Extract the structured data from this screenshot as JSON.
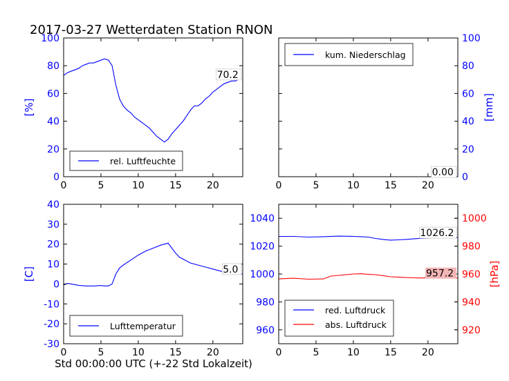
{
  "title": "2017-03-27 Wetterdaten Station RNON",
  "xlabel": "Std 00:00:00 UTC (+-22 Std Lokalzeit)",
  "colors": {
    "blue": "#0000ff",
    "red": "#ff0000",
    "black": "#000000"
  },
  "chart_data": [
    {
      "type": "line",
      "panel": "top-left",
      "xlim": [
        0,
        24
      ],
      "xticks": [
        0,
        5,
        10,
        15,
        20
      ],
      "ylim": [
        0,
        100
      ],
      "yticks": [
        0,
        20,
        40,
        60,
        80,
        100
      ],
      "ylabel": "[%]",
      "legend_position": "lower-left",
      "annotation": "70.2",
      "series": [
        {
          "name": "rel. Luftfeuchte",
          "color": "#0000ff",
          "x": [
            0,
            0.5,
            1,
            1.5,
            2,
            2.5,
            3,
            3.5,
            4,
            4.5,
            5,
            5.5,
            6,
            6.5,
            7,
            7.5,
            8,
            8.5,
            9,
            9.5,
            10,
            10.5,
            11,
            11.5,
            12,
            12.5,
            13,
            13.5,
            14,
            14.5,
            15,
            15.5,
            16,
            16.5,
            17,
            17.5,
            18,
            18.5,
            19,
            19.5,
            20,
            20.5,
            21,
            21.5,
            22,
            22.5,
            23,
            23.5
          ],
          "values": [
            73,
            75,
            76,
            77,
            78,
            80,
            81,
            82,
            82,
            83,
            84,
            85,
            84,
            80,
            66,
            56,
            51,
            48,
            46,
            43,
            41,
            39,
            37,
            35,
            32,
            29,
            27,
            25,
            27,
            31,
            34,
            37,
            40,
            44,
            48,
            51,
            51,
            53,
            56,
            58,
            61,
            63,
            65,
            67,
            68,
            69,
            69,
            70.2
          ]
        }
      ]
    },
    {
      "type": "line",
      "panel": "top-right",
      "xlim": [
        0,
        24
      ],
      "xticks": [
        0,
        5,
        10,
        15,
        20
      ],
      "ylim": [
        0,
        100
      ],
      "yticks": [
        0,
        20,
        40,
        60,
        80,
        100
      ],
      "ylabel": "[mm]",
      "legend_position": "upper-left",
      "annotation": "0.00",
      "series": [
        {
          "name": "kum. Niederschlag",
          "color": "#0000ff",
          "x": [
            0,
            24
          ],
          "values": [
            0,
            0
          ]
        }
      ]
    },
    {
      "type": "line",
      "panel": "bottom-left",
      "xlim": [
        0,
        24
      ],
      "xticks": [
        0,
        5,
        10,
        15,
        20
      ],
      "ylim": [
        -30,
        40
      ],
      "yticks": [
        -30,
        -20,
        -10,
        0,
        10,
        20,
        30,
        40
      ],
      "ylabel": "[C]",
      "legend_position": "lower-left",
      "annotation": "5.0",
      "series": [
        {
          "name": "Lufttemperatur",
          "color": "#0000ff",
          "x": [
            0,
            0.5,
            1,
            2,
            3,
            4,
            5,
            5.5,
            6,
            6.5,
            7,
            7.5,
            8,
            9,
            10,
            11,
            12,
            13,
            13.5,
            14,
            14.5,
            15,
            15.5,
            16,
            17,
            18,
            19,
            20,
            21,
            22,
            23,
            24
          ],
          "values": [
            -0.5,
            0.3,
            0,
            -0.7,
            -1,
            -1,
            -0.8,
            -1,
            -1,
            0,
            5,
            8,
            9.5,
            12,
            14.5,
            16.5,
            18,
            19.5,
            20,
            20.5,
            18,
            15.5,
            13.5,
            12.5,
            10.5,
            9.5,
            8.5,
            7.5,
            6.5,
            5.5,
            5,
            5
          ]
        }
      ]
    },
    {
      "type": "line",
      "panel": "bottom-right",
      "xlim": [
        0,
        24
      ],
      "xticks": [
        0,
        5,
        10,
        15,
        20
      ],
      "ylim": [
        950,
        1050
      ],
      "yticks": [
        960,
        980,
        1000,
        1020,
        1040
      ],
      "ylim_right": [
        910,
        1010
      ],
      "yticks_right": [
        920,
        940,
        960,
        980,
        1000
      ],
      "ylabel_right": "[hPa]",
      "legend_position": "lower-left",
      "annotations": [
        "1026.2",
        "957.2"
      ],
      "series": [
        {
          "name": "red. Luftdruck",
          "color": "#0000ff",
          "axis": "left",
          "x": [
            0,
            2,
            4,
            6,
            8,
            10,
            11,
            12,
            13,
            14,
            15,
            16,
            17,
            18,
            19,
            20,
            21,
            22,
            23,
            24
          ],
          "values": [
            1027,
            1027,
            1026.5,
            1026.8,
            1027.2,
            1027,
            1026.8,
            1026.5,
            1025.5,
            1024.8,
            1024.3,
            1024.5,
            1024.8,
            1025.2,
            1025.6,
            1025.8,
            1026,
            1026.2,
            1026.2,
            1026.2
          ]
        },
        {
          "name": "abs. Luftdruck",
          "color": "#ff0000",
          "axis": "right",
          "x": [
            0,
            2,
            4,
            6,
            7,
            8,
            10,
            11,
            12,
            13,
            14,
            15,
            16,
            17,
            18,
            19,
            20,
            21,
            22,
            23,
            24
          ],
          "values": [
            956.5,
            957,
            956.3,
            956.5,
            958.5,
            959,
            960,
            960.2,
            959.8,
            959.5,
            958.8,
            958,
            957.8,
            957.5,
            957.3,
            957.2,
            957.2,
            957.3,
            957.2,
            957.2,
            957.2
          ]
        }
      ]
    }
  ]
}
